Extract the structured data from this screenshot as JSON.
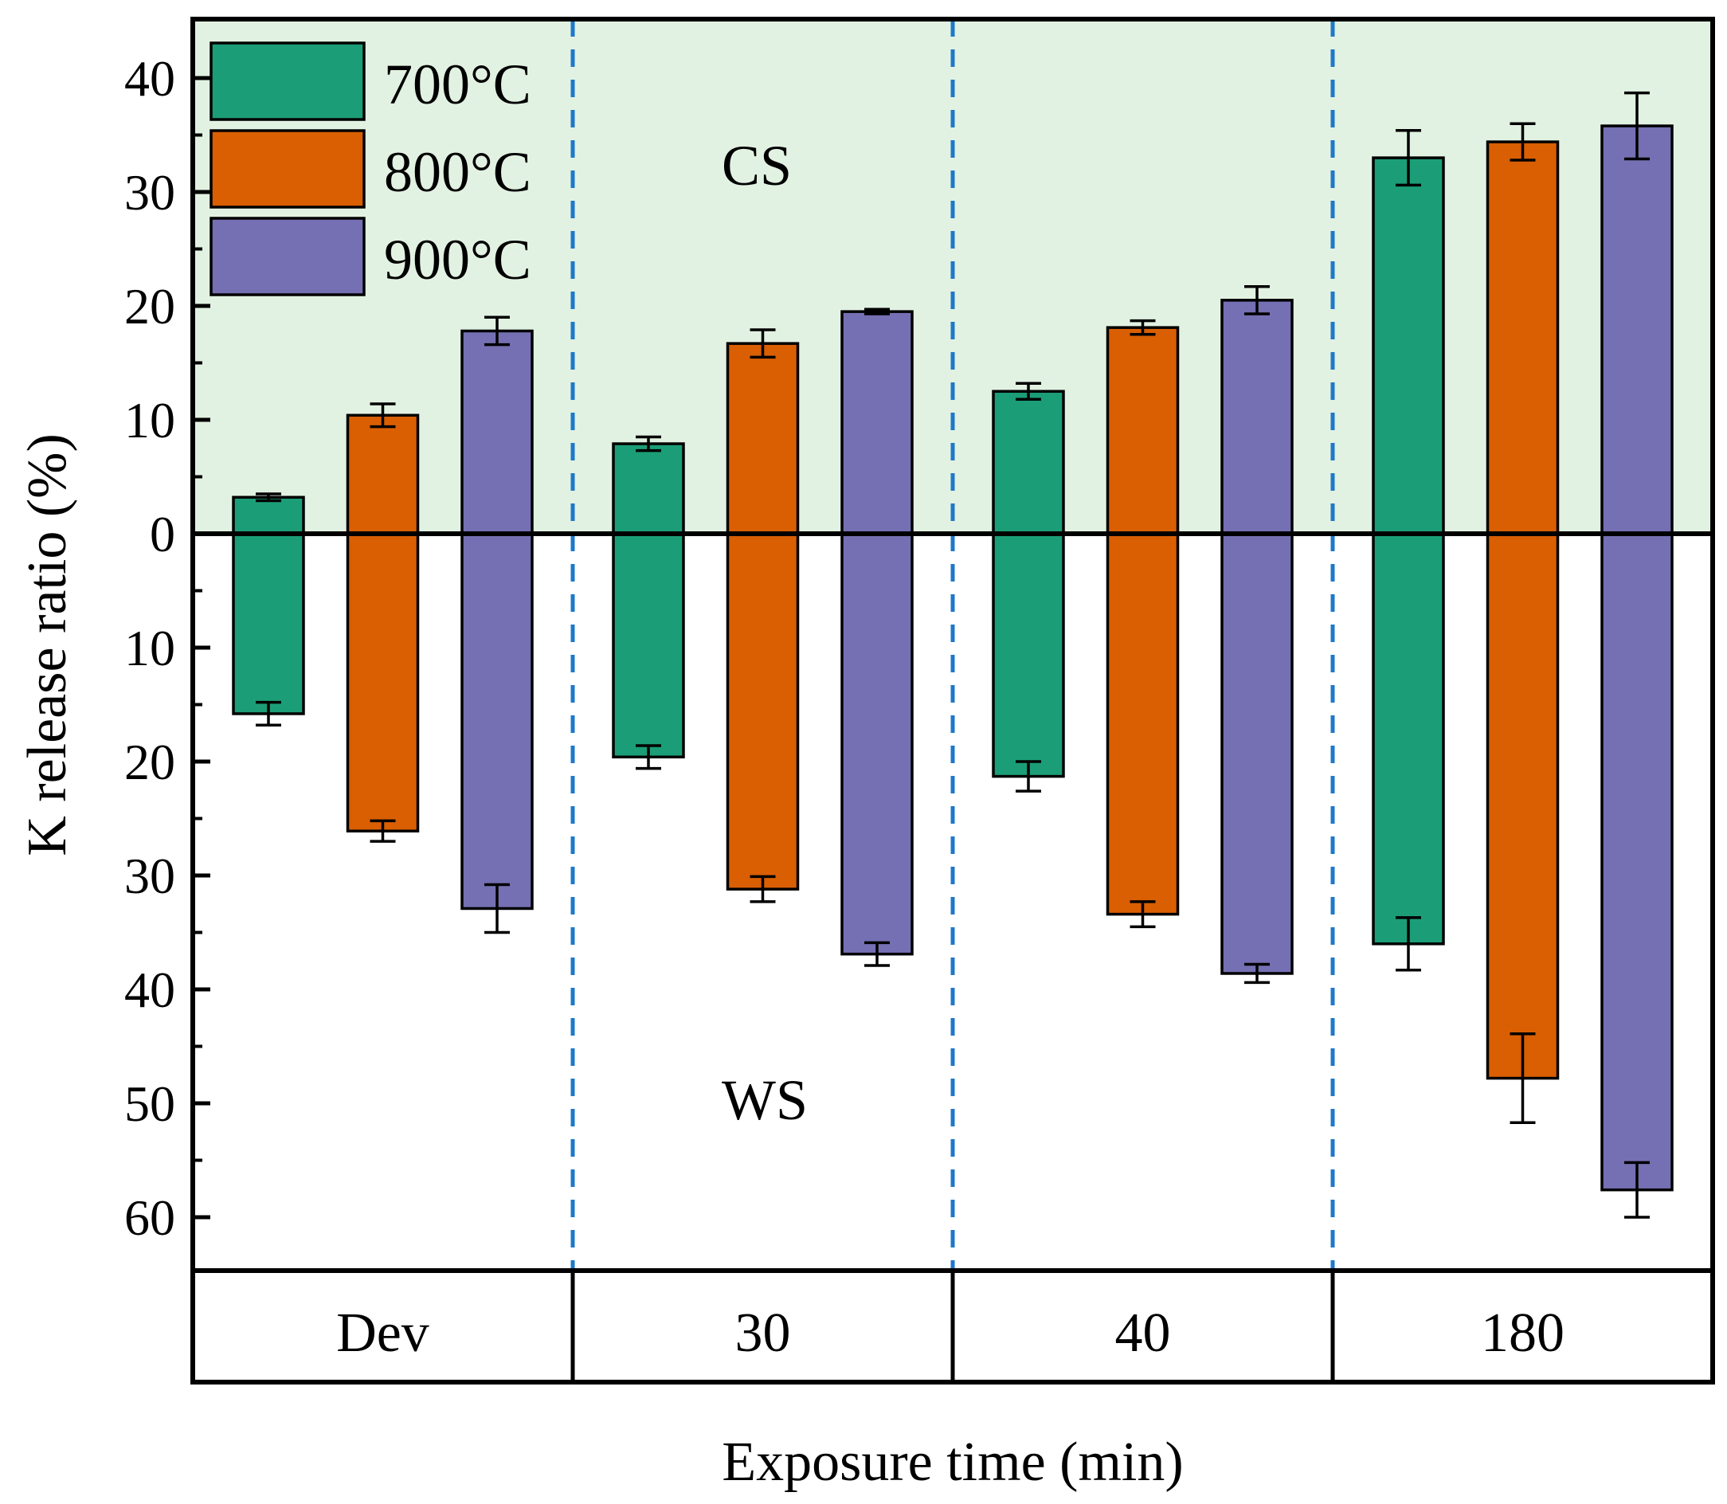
{
  "chart_data": {
    "type": "bar",
    "subtype": "mirrored-bar-with-error-bars",
    "xlabel": "Exposure time (min)",
    "ylabel": "K release ratio (%)",
    "ylim": [
      -65,
      44
    ],
    "yticks": [
      -60,
      -50,
      -40,
      -30,
      -20,
      -10,
      0,
      10,
      20,
      30,
      40
    ],
    "ytick_labels": [
      "60",
      "50",
      "40",
      "30",
      "20",
      "10",
      "0",
      "10",
      "20",
      "30",
      "40"
    ],
    "categories": [
      "Dev",
      "30",
      "40",
      "180"
    ],
    "regions": {
      "upper": "CS",
      "lower": "WS"
    },
    "colors": {
      "cs_background": "#e2f2e2",
      "divider": "#1f78c8",
      "axis": "#000000"
    },
    "series": [
      {
        "name": "700°C",
        "color": "#1b9e77",
        "cs_values": [
          3.2,
          7.9,
          12.5,
          33.0
        ],
        "cs_errors": [
          0.3,
          0.6,
          0.7,
          2.4
        ],
        "ws_values": [
          15.8,
          19.6,
          21.3,
          36.0
        ],
        "ws_errors": [
          1.0,
          1.0,
          1.3,
          2.3
        ]
      },
      {
        "name": "800°C",
        "color": "#d95f02",
        "cs_values": [
          10.4,
          16.7,
          18.1,
          34.4
        ],
        "cs_errors": [
          1.0,
          1.2,
          0.6,
          1.6
        ],
        "ws_values": [
          26.1,
          31.2,
          33.4,
          47.8
        ],
        "ws_errors": [
          0.9,
          1.1,
          1.1,
          3.9
        ]
      },
      {
        "name": "900°C",
        "color": "#7570b3",
        "cs_values": [
          17.8,
          19.5,
          20.5,
          35.8
        ],
        "cs_errors": [
          1.2,
          0.2,
          1.2,
          2.9
        ],
        "ws_values": [
          32.9,
          36.9,
          38.6,
          57.6
        ],
        "ws_errors": [
          2.1,
          1.0,
          0.8,
          2.4
        ]
      }
    ]
  }
}
